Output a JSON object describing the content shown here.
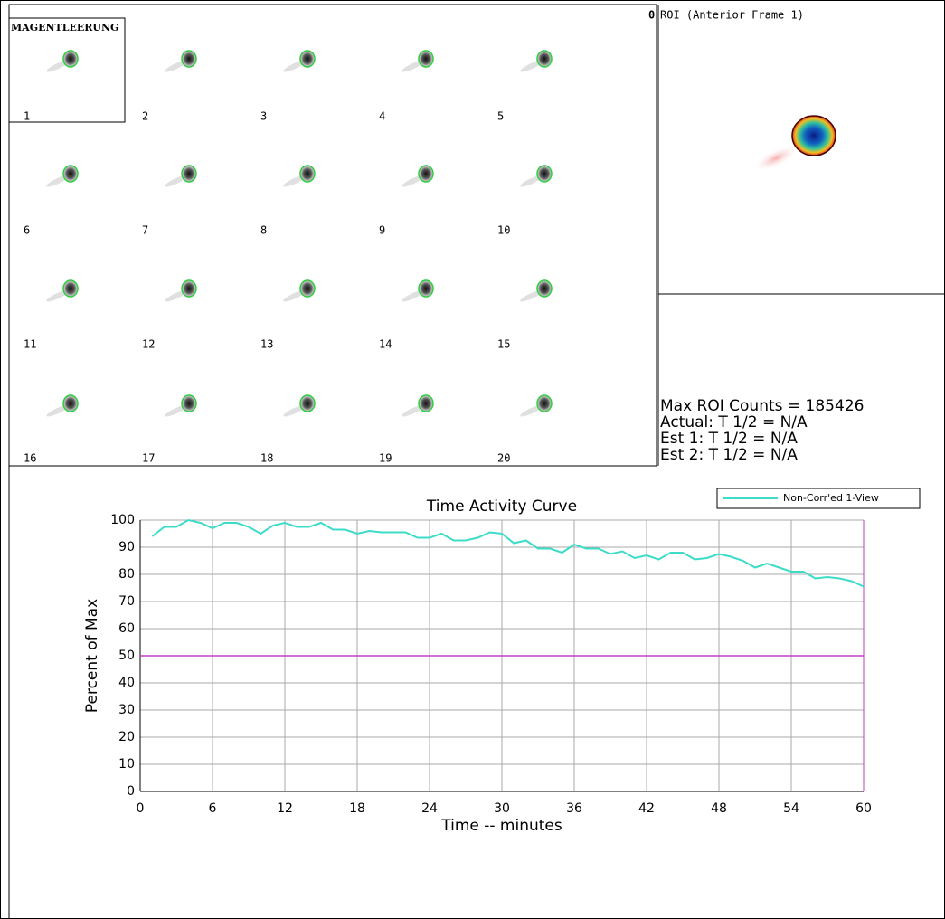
{
  "panel": {
    "title": "MAGENTLEERUNG",
    "frames": [
      "1",
      "2",
      "3",
      "4",
      "5",
      "6",
      "7",
      "8",
      "9",
      "10",
      "11",
      "12",
      "13",
      "14",
      "15",
      "16",
      "17",
      "18",
      "19",
      "20"
    ]
  },
  "roi": {
    "marker": "0",
    "title": "ROI (Anterior Frame 1)"
  },
  "stats": [
    "Max ROI Counts = 185426",
    "Actual: T 1/2 = N/A",
    "Est 1: T 1/2 = N/A",
    "Est 2: T 1/2 = N/A"
  ],
  "chart_data": {
    "type": "line",
    "title": "Time Activity Curve",
    "x_label": "Time -- minutes",
    "y_label": "Percent of Max",
    "x": [
      1,
      2,
      3,
      4,
      5,
      6,
      7,
      8,
      9,
      10,
      11,
      12,
      13,
      14,
      15,
      16,
      17,
      18,
      19,
      20,
      21,
      22,
      23,
      24,
      25,
      26,
      27,
      28,
      29,
      30,
      31,
      32,
      33,
      34,
      35,
      36,
      37,
      38,
      39,
      40,
      41,
      42,
      43,
      44,
      45,
      46,
      47,
      48,
      49,
      50,
      51,
      52,
      53,
      54,
      55,
      56,
      57,
      58,
      59,
      60
    ],
    "series": [
      {
        "name": "Non-Corr'ed 1-View",
        "color": "#3cdcc8",
        "values": [
          94,
          97.5,
          97.5,
          100,
          99,
          97,
          99,
          99,
          97.5,
          95,
          98,
          99,
          97.5,
          97.5,
          99,
          96.5,
          96.5,
          95,
          96,
          95.5,
          95.5,
          95.5,
          93.5,
          93.5,
          95,
          92.5,
          92.5,
          93.5,
          95.5,
          95,
          91.5,
          92.5,
          89.5,
          89.5,
          88,
          91,
          89.5,
          89.5,
          87.5,
          88.5,
          86,
          87,
          85.5,
          88,
          88,
          85.5,
          86,
          87.5,
          86.5,
          85,
          82.5,
          84,
          82.5,
          81,
          81,
          78.5,
          79,
          78.5,
          77.5,
          75.5
        ]
      }
    ],
    "reference_line": {
      "value": 50,
      "color": "#c040c0"
    },
    "xlim": [
      0,
      60
    ],
    "xticks": [
      0,
      6,
      12,
      18,
      24,
      30,
      36,
      42,
      48,
      54,
      60
    ],
    "ylim": [
      0,
      100
    ],
    "yticks": [
      0,
      10,
      20,
      30,
      40,
      50,
      60,
      70,
      80,
      90,
      100
    ],
    "grid": true,
    "legend": "top-right"
  }
}
